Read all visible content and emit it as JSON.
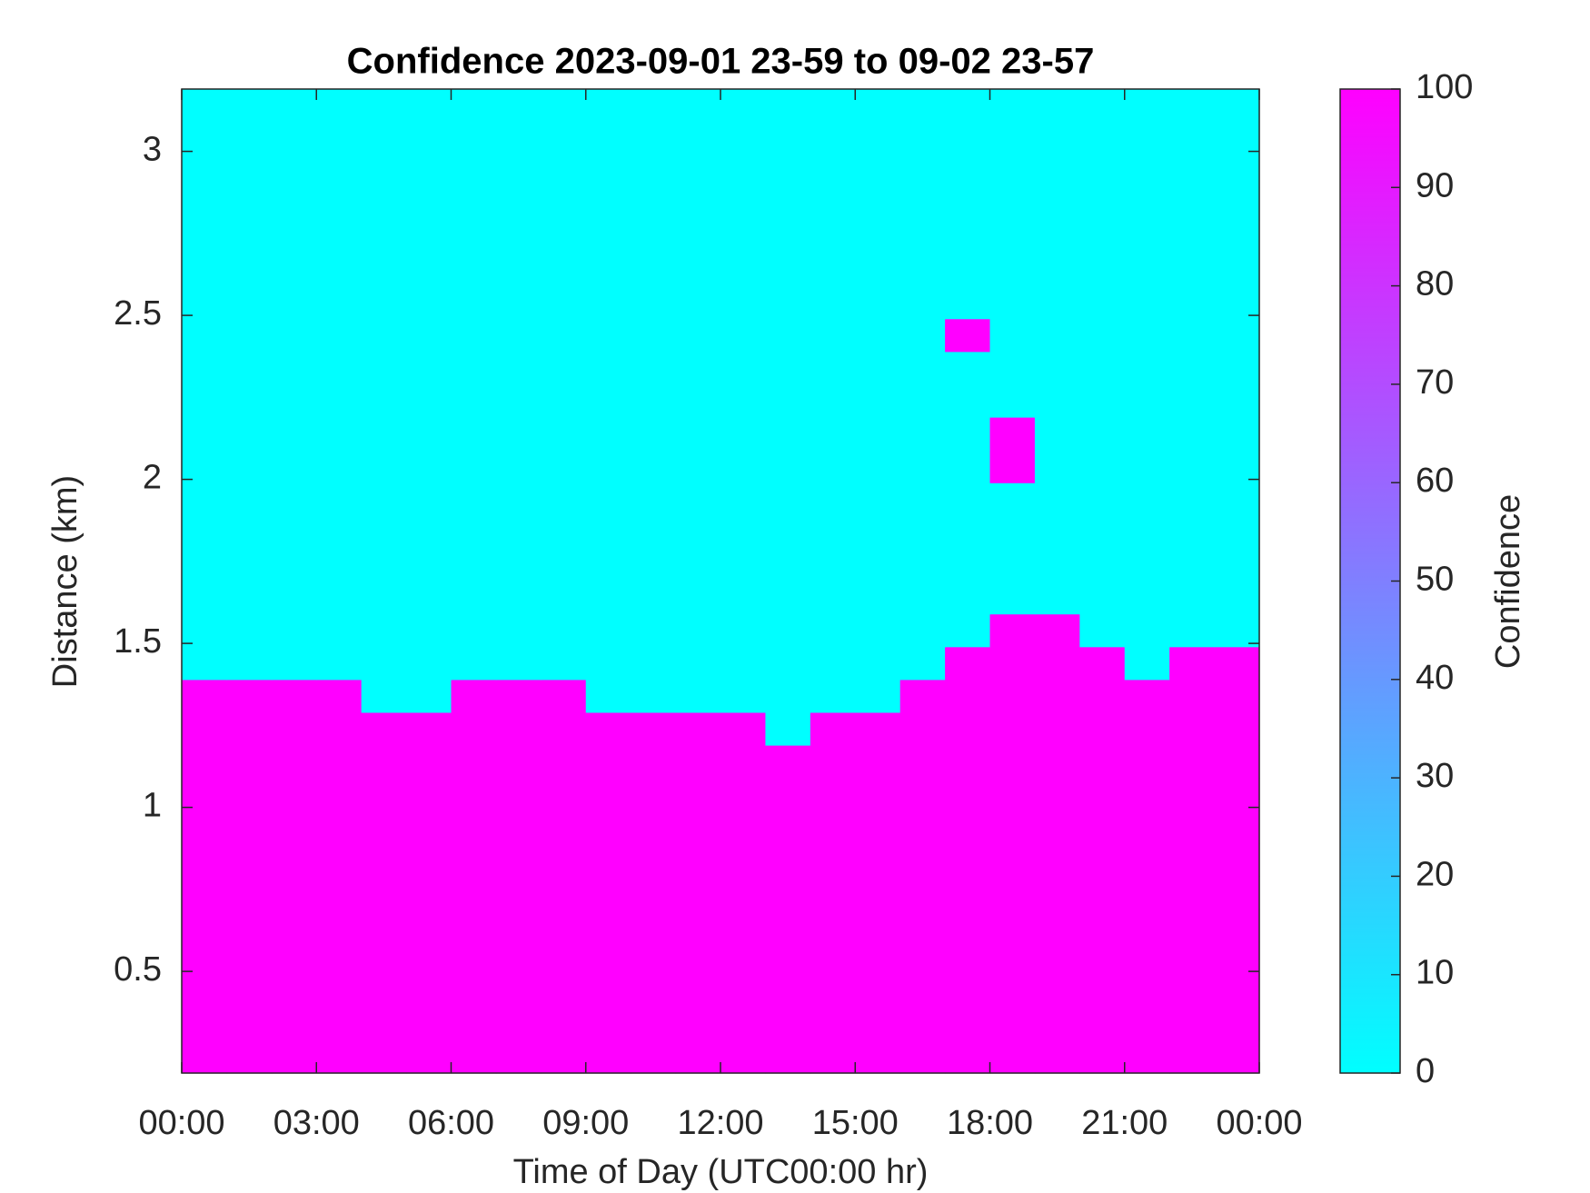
{
  "chart_data": {
    "type": "heatmap",
    "title": "Confidence 2023-09-01 23-59 to 09-02 23-57",
    "x_label": "Time of Day (UTC00:00 hr)",
    "y_label": "Distance (km)",
    "colorbar_label": "Confidence",
    "colormap": [
      "#00ffff",
      "#ff00ff"
    ],
    "clim": [
      0,
      100
    ],
    "cticks": [
      0,
      10,
      20,
      30,
      40,
      50,
      60,
      70,
      80,
      90,
      100
    ],
    "xlim": [
      0,
      24
    ],
    "ylim": [
      0.19,
      3.19
    ],
    "xticks": [
      {
        "value": 0,
        "label": "00:00"
      },
      {
        "value": 3,
        "label": "03:00"
      },
      {
        "value": 6,
        "label": "06:00"
      },
      {
        "value": 9,
        "label": "09:00"
      },
      {
        "value": 12,
        "label": "12:00"
      },
      {
        "value": 15,
        "label": "15:00"
      },
      {
        "value": 18,
        "label": "18:00"
      },
      {
        "value": 21,
        "label": "21:00"
      },
      {
        "value": 24,
        "label": "00:00"
      }
    ],
    "yticks": [
      0.5,
      1,
      1.5,
      2,
      2.5,
      3
    ],
    "x_edges": [
      0,
      1,
      2,
      3,
      4,
      5,
      6,
      7,
      8,
      9,
      10,
      11,
      12,
      13,
      14,
      15,
      16,
      17,
      18,
      19,
      20,
      21,
      22,
      23,
      24
    ],
    "y_edges": [
      0.19,
      0.29,
      0.39,
      0.49,
      0.59,
      0.69,
      0.79,
      0.89,
      0.99,
      1.09,
      1.19,
      1.29,
      1.39,
      1.49,
      1.59,
      1.69,
      1.79,
      1.89,
      1.99,
      2.09,
      2.19,
      2.29,
      2.39,
      2.49,
      2.59,
      2.69,
      2.79,
      2.89,
      2.99,
      3.09,
      3.19
    ],
    "z": [
      [
        100,
        100,
        100,
        100,
        100,
        100,
        100,
        100,
        100,
        100,
        100,
        100,
        100,
        100,
        100,
        100,
        100,
        100,
        100,
        100,
        100,
        100,
        100,
        100
      ],
      [
        100,
        100,
        100,
        100,
        100,
        100,
        100,
        100,
        100,
        100,
        100,
        100,
        100,
        100,
        100,
        100,
        100,
        100,
        100,
        100,
        100,
        100,
        100,
        100
      ],
      [
        100,
        100,
        100,
        100,
        100,
        100,
        100,
        100,
        100,
        100,
        100,
        100,
        100,
        100,
        100,
        100,
        100,
        100,
        100,
        100,
        100,
        100,
        100,
        100
      ],
      [
        100,
        100,
        100,
        100,
        100,
        100,
        100,
        100,
        100,
        100,
        100,
        100,
        100,
        100,
        100,
        100,
        100,
        100,
        100,
        100,
        100,
        100,
        100,
        100
      ],
      [
        100,
        100,
        100,
        100,
        100,
        100,
        100,
        100,
        100,
        100,
        100,
        100,
        100,
        100,
        100,
        100,
        100,
        100,
        100,
        100,
        100,
        100,
        100,
        100
      ],
      [
        100,
        100,
        100,
        100,
        100,
        100,
        100,
        100,
        100,
        100,
        100,
        100,
        100,
        100,
        100,
        100,
        100,
        100,
        100,
        100,
        100,
        100,
        100,
        100
      ],
      [
        100,
        100,
        100,
        100,
        100,
        100,
        100,
        100,
        100,
        100,
        100,
        100,
        100,
        100,
        100,
        100,
        100,
        100,
        100,
        100,
        100,
        100,
        100,
        100
      ],
      [
        100,
        100,
        100,
        100,
        100,
        100,
        100,
        100,
        100,
        100,
        100,
        100,
        100,
        100,
        100,
        100,
        100,
        100,
        100,
        100,
        100,
        100,
        100,
        100
      ],
      [
        100,
        100,
        100,
        100,
        100,
        100,
        100,
        100,
        100,
        100,
        100,
        100,
        100,
        100,
        100,
        100,
        100,
        100,
        100,
        100,
        100,
        100,
        100,
        100
      ],
      [
        100,
        100,
        100,
        100,
        100,
        100,
        100,
        100,
        100,
        100,
        100,
        100,
        100,
        100,
        100,
        100,
        100,
        100,
        100,
        100,
        100,
        100,
        100,
        100
      ],
      [
        100,
        100,
        100,
        100,
        100,
        100,
        100,
        100,
        100,
        100,
        100,
        100,
        100,
        0,
        100,
        100,
        100,
        100,
        100,
        100,
        100,
        100,
        100,
        100
      ],
      [
        100,
        100,
        100,
        100,
        0,
        0,
        100,
        100,
        100,
        0,
        0,
        0,
        0,
        0,
        0,
        0,
        100,
        100,
        100,
        100,
        100,
        100,
        100,
        100
      ],
      [
        0,
        0,
        0,
        0,
        0,
        0,
        0,
        0,
        0,
        0,
        0,
        0,
        0,
        0,
        0,
        0,
        0,
        100,
        100,
        100,
        100,
        0,
        100,
        100
      ],
      [
        0,
        0,
        0,
        0,
        0,
        0,
        0,
        0,
        0,
        0,
        0,
        0,
        0,
        0,
        0,
        0,
        0,
        0,
        100,
        100,
        0,
        0,
        0,
        0
      ],
      [
        0,
        0,
        0,
        0,
        0,
        0,
        0,
        0,
        0,
        0,
        0,
        0,
        0,
        0,
        0,
        0,
        0,
        0,
        0,
        0,
        0,
        0,
        0,
        0
      ],
      [
        0,
        0,
        0,
        0,
        0,
        0,
        0,
        0,
        0,
        0,
        0,
        0,
        0,
        0,
        0,
        0,
        0,
        0,
        0,
        0,
        0,
        0,
        0,
        0
      ],
      [
        0,
        0,
        0,
        0,
        0,
        0,
        0,
        0,
        0,
        0,
        0,
        0,
        0,
        0,
        0,
        0,
        0,
        0,
        0,
        0,
        0,
        0,
        0,
        0
      ],
      [
        0,
        0,
        0,
        0,
        0,
        0,
        0,
        0,
        0,
        0,
        0,
        0,
        0,
        0,
        0,
        0,
        0,
        0,
        0,
        0,
        0,
        0,
        0,
        0
      ],
      [
        0,
        0,
        0,
        0,
        0,
        0,
        0,
        0,
        0,
        0,
        0,
        0,
        0,
        0,
        0,
        0,
        0,
        0,
        100,
        0,
        0,
        0,
        0,
        0
      ],
      [
        0,
        0,
        0,
        0,
        0,
        0,
        0,
        0,
        0,
        0,
        0,
        0,
        0,
        0,
        0,
        0,
        0,
        0,
        100,
        0,
        0,
        0,
        0,
        0
      ],
      [
        0,
        0,
        0,
        0,
        0,
        0,
        0,
        0,
        0,
        0,
        0,
        0,
        0,
        0,
        0,
        0,
        0,
        0,
        0,
        0,
        0,
        0,
        0,
        0
      ],
      [
        0,
        0,
        0,
        0,
        0,
        0,
        0,
        0,
        0,
        0,
        0,
        0,
        0,
        0,
        0,
        0,
        0,
        0,
        0,
        0,
        0,
        0,
        0,
        0
      ],
      [
        0,
        0,
        0,
        0,
        0,
        0,
        0,
        0,
        0,
        0,
        0,
        0,
        0,
        0,
        0,
        0,
        0,
        100,
        0,
        0,
        0,
        0,
        0,
        0
      ],
      [
        0,
        0,
        0,
        0,
        0,
        0,
        0,
        0,
        0,
        0,
        0,
        0,
        0,
        0,
        0,
        0,
        0,
        0,
        0,
        0,
        0,
        0,
        0,
        0
      ],
      [
        0,
        0,
        0,
        0,
        0,
        0,
        0,
        0,
        0,
        0,
        0,
        0,
        0,
        0,
        0,
        0,
        0,
        0,
        0,
        0,
        0,
        0,
        0,
        0
      ],
      [
        0,
        0,
        0,
        0,
        0,
        0,
        0,
        0,
        0,
        0,
        0,
        0,
        0,
        0,
        0,
        0,
        0,
        0,
        0,
        0,
        0,
        0,
        0,
        0
      ],
      [
        0,
        0,
        0,
        0,
        0,
        0,
        0,
        0,
        0,
        0,
        0,
        0,
        0,
        0,
        0,
        0,
        0,
        0,
        0,
        0,
        0,
        0,
        0,
        0
      ],
      [
        0,
        0,
        0,
        0,
        0,
        0,
        0,
        0,
        0,
        0,
        0,
        0,
        0,
        0,
        0,
        0,
        0,
        0,
        0,
        0,
        0,
        0,
        0,
        0
      ],
      [
        0,
        0,
        0,
        0,
        0,
        0,
        0,
        0,
        0,
        0,
        0,
        0,
        0,
        0,
        0,
        0,
        0,
        0,
        0,
        0,
        0,
        0,
        0,
        0
      ],
      [
        0,
        0,
        0,
        0,
        0,
        0,
        0,
        0,
        0,
        0,
        0,
        0,
        0,
        0,
        0,
        0,
        0,
        0,
        0,
        0,
        0,
        0,
        0,
        0
      ]
    ]
  }
}
